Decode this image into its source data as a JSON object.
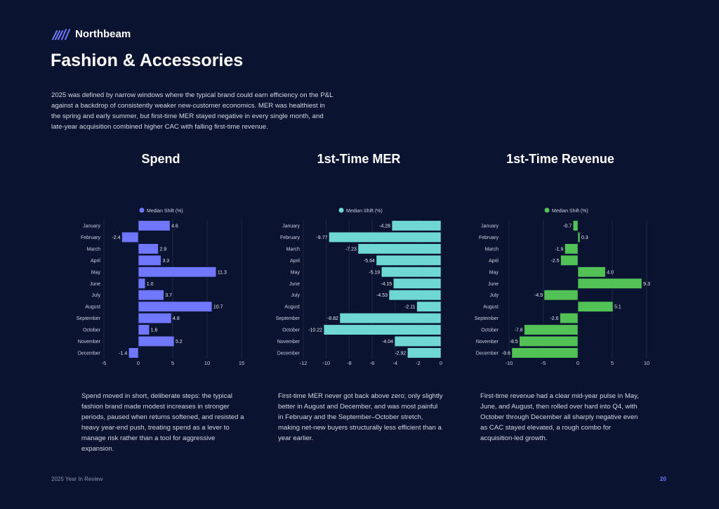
{
  "brand": {
    "name": "Northbeam",
    "logo_icon": "northbeam-slashes-logo",
    "accent": "#6f77ff"
  },
  "page": {
    "title": "Fashion & Accessories",
    "intro": "2025 was defined by narrow windows where the typical brand could earn efficiency on the P&L against a backdrop of consistently weaker new-customer economics. MER was healthiest in the spring and early summer, but first-time MER stayed negative in every single month, and late-year acquisition combined higher CAC with falling first-time revenue.",
    "footer_left": "2025 Year In Review",
    "page_number": "20"
  },
  "chart_data": [
    {
      "type": "bar",
      "orientation": "horizontal",
      "title": "Spend",
      "legend": "Median Shift (%)",
      "legend_position": "top",
      "color": "#6f77ff",
      "categories": [
        "January",
        "February",
        "March",
        "April",
        "May",
        "June",
        "July",
        "August",
        "September",
        "October",
        "November",
        "December"
      ],
      "values": [
        4.6,
        -2.4,
        2.9,
        3.3,
        11.3,
        1.0,
        3.7,
        10.7,
        4.8,
        1.6,
        5.2,
        -1.4
      ],
      "labels": [
        "4.6",
        "-2.4",
        "2.9",
        "3.3",
        "11.3",
        "1.0",
        "3.7",
        "10.7",
        "4.8",
        "1.6",
        "5.2",
        "-1.4"
      ],
      "xlim": [
        -5,
        15
      ],
      "xticks": [
        -5,
        0,
        5,
        10,
        15
      ],
      "grid": true,
      "description": "Spend moved in short, deliberate steps: the typical fashion brand made modest increases in stronger periods, paused when returns softened, and resisted a heavy year-end push, treating spend as a lever to manage risk rather than a tool for aggressive expansion."
    },
    {
      "type": "bar",
      "orientation": "horizontal",
      "title": "1st-Time MER",
      "legend": "Median Shift (%)",
      "legend_position": "top",
      "color": "#6fd8d4",
      "categories": [
        "January",
        "February",
        "March",
        "April",
        "May",
        "June",
        "July",
        "August",
        "September",
        "October",
        "November",
        "December"
      ],
      "values": [
        -4.28,
        -9.77,
        -7.23,
        -5.64,
        -5.19,
        -4.15,
        -4.53,
        -2.11,
        -8.82,
        -10.22,
        -4.04,
        -2.92
      ],
      "labels": [
        "-4.28",
        "-9.77",
        "-7.23",
        "-5.64",
        "-5.19",
        "-4.15",
        "-4.53",
        "-2.11",
        "-8.82",
        "-10.22",
        "-4.04",
        "-2.92"
      ],
      "xlim": [
        -12,
        0
      ],
      "xticks": [
        -12,
        -10,
        -8,
        -6,
        -4,
        -2,
        0
      ],
      "grid": true,
      "description": "First-time MER never got back above zero; only slightly better in August and December, and was most painful in February and the September–October stretch, making net-new buyers structurally less efficient than a year earlier."
    },
    {
      "type": "bar",
      "orientation": "horizontal",
      "title": "1st-Time Revenue",
      "legend": "Median Shift (%)",
      "legend_position": "top",
      "color": "#52c257",
      "categories": [
        "January",
        "February",
        "March",
        "April",
        "May",
        "June",
        "July",
        "August",
        "September",
        "October",
        "November",
        "December"
      ],
      "values": [
        -0.7,
        0.3,
        -1.9,
        -2.5,
        4.0,
        9.3,
        -4.9,
        5.1,
        -2.6,
        -7.8,
        -8.5,
        -9.6
      ],
      "labels": [
        "-0.7",
        "0.3",
        "-1.9",
        "-2.5",
        "4.0",
        "9.3",
        "-4.9",
        "5.1",
        "-2.6",
        "-7.8",
        "-8.5",
        "-9.6"
      ],
      "xlim": [
        -10,
        10
      ],
      "xticks": [
        -10,
        -5,
        0,
        5,
        10
      ],
      "grid": true,
      "description": "First-time revenue had a clear mid-year pulse in May, June, and August, then rolled over hard into Q4, with October through December all sharply negative even as CAC stayed elevated, a rough combo for acquisition-led growth."
    }
  ]
}
